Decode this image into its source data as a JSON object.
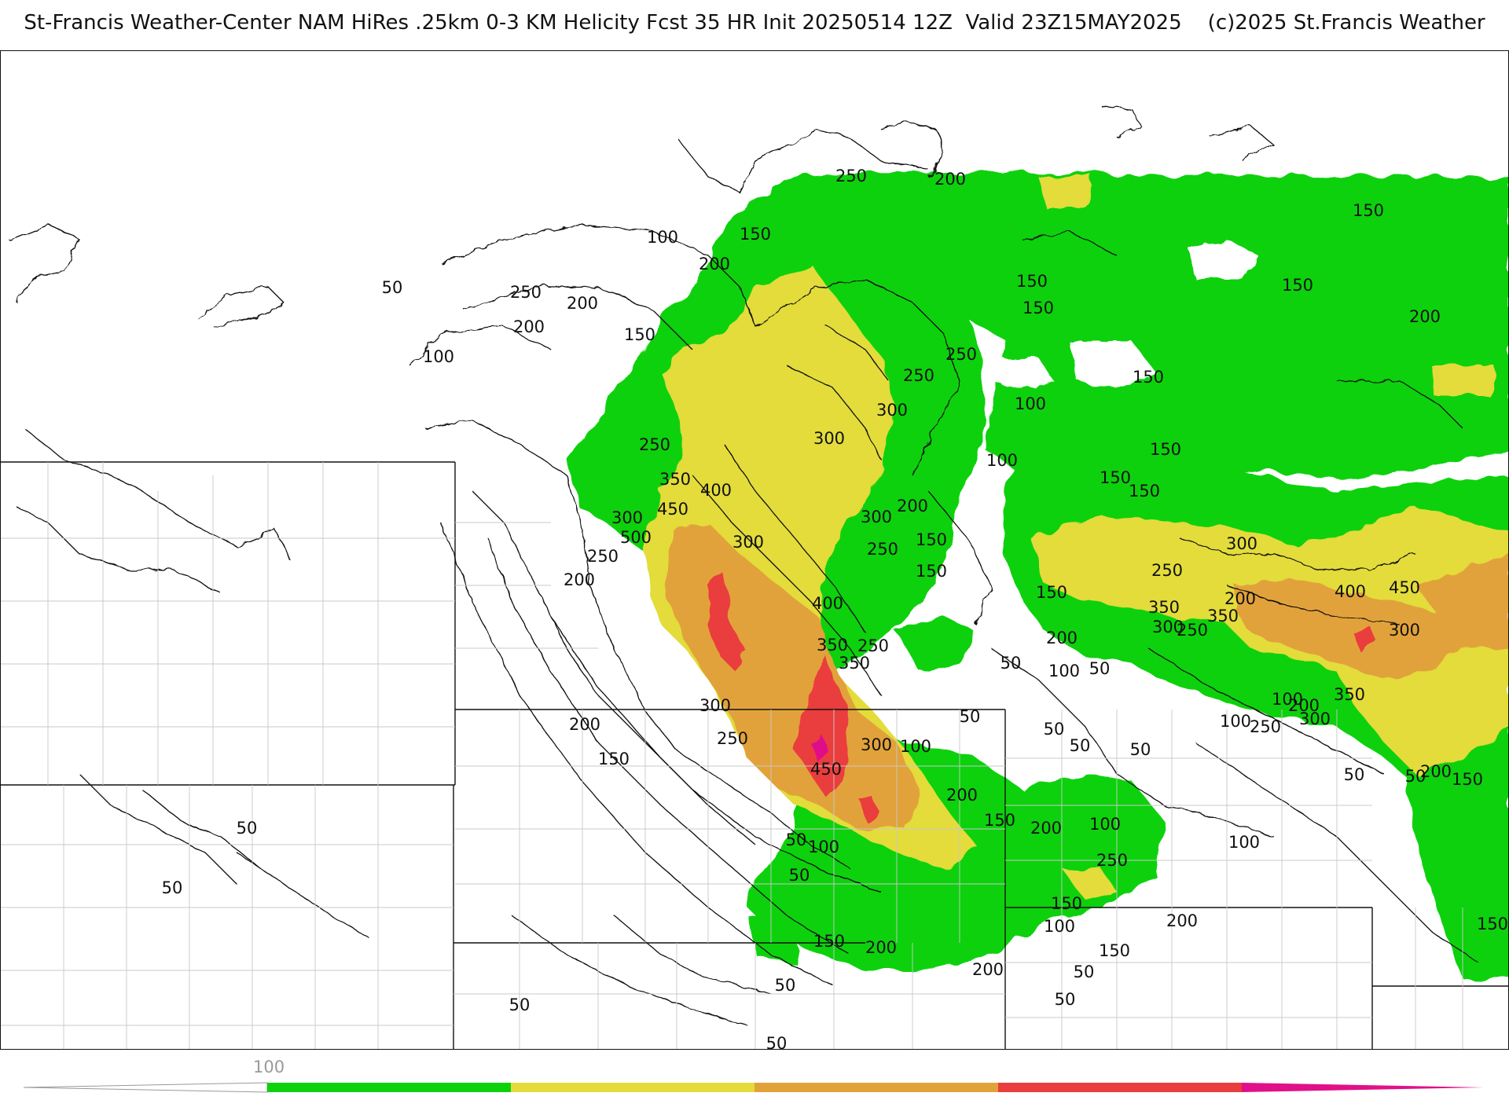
{
  "title": "St-Francis Weather-Center NAM HiRes .25km 0-3 KM Helicity Fcst 35 HR Init 20250514 12Z  Valid 23Z15MAY2025    (c)2025 St.Francis Weather",
  "colorbar": {
    "tick_label": "100",
    "bins": [
      {
        "from": 0,
        "to": 100,
        "color": "#ffffff"
      },
      {
        "from": 100,
        "to": 200,
        "color": "#0ed10e"
      },
      {
        "from": 200,
        "to": 300,
        "color": "#e3dc3a"
      },
      {
        "from": 300,
        "to": 400,
        "color": "#e2a23a"
      },
      {
        "from": 400,
        "to": 500,
        "color": "#ea3d3d"
      },
      {
        "from": 500,
        "to": 600,
        "color": "#e0108a"
      }
    ]
  },
  "map": {
    "colors": {
      "green": "#0ed10e",
      "yellow": "#e3dc3a",
      "orange": "#e2a23a",
      "red": "#ea3d3d",
      "magenta": "#e0108a"
    },
    "contour_labels": [
      "250",
      "200",
      "150",
      "100",
      "200",
      "50",
      "250",
      "200",
      "200",
      "150",
      "100",
      "150",
      "150",
      "150",
      "200",
      "150",
      "250",
      "250",
      "300",
      "300",
      "150",
      "100",
      "250",
      "100",
      "150",
      "150",
      "150",
      "350",
      "400",
      "300",
      "450",
      "500",
      "300",
      "250",
      "200",
      "200",
      "300",
      "250",
      "150",
      "150",
      "150",
      "200",
      "100",
      "50",
      "400",
      "350",
      "250",
      "350",
      "250",
      "300",
      "200",
      "300",
      "250",
      "350",
      "350",
      "400",
      "450",
      "300",
      "50",
      "50",
      "50",
      "50",
      "350",
      "200",
      "100",
      "50",
      "100",
      "250",
      "300",
      "50",
      "50",
      "200",
      "150",
      "300",
      "250",
      "200",
      "150",
      "450",
      "300",
      "100",
      "200",
      "150",
      "200",
      "100",
      "100",
      "250",
      "150",
      "150",
      "200",
      "100",
      "50",
      "200",
      "150",
      "50",
      "100",
      "150",
      "200",
      "50",
      "50",
      "50",
      "50",
      "50",
      "50",
      "50"
    ]
  }
}
